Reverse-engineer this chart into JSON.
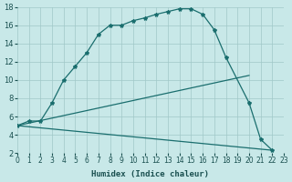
{
  "bg_color": "#c8e8e8",
  "grid_color": "#a0c8c8",
  "line_color": "#1a6e6e",
  "xlabel": "Humidex (Indice chaleur)",
  "xlim": [
    0,
    23
  ],
  "ylim": [
    2,
    18
  ],
  "xticks": [
    0,
    1,
    2,
    3,
    4,
    5,
    6,
    7,
    8,
    9,
    10,
    11,
    12,
    13,
    14,
    15,
    16,
    17,
    18,
    19,
    20,
    21,
    22,
    23
  ],
  "yticks": [
    2,
    4,
    6,
    8,
    10,
    12,
    14,
    16,
    18
  ],
  "curve_x": [
    0,
    1,
    2,
    3,
    4,
    5,
    6,
    7,
    8,
    9,
    10,
    11,
    12,
    13,
    14,
    15,
    16,
    17,
    18,
    20,
    21,
    22
  ],
  "curve_y": [
    5,
    5.5,
    5.5,
    7.5,
    10.0,
    11.5,
    13.0,
    15.0,
    16.0,
    16.0,
    16.5,
    16.8,
    17.2,
    17.5,
    17.8,
    17.8,
    17.2,
    15.5,
    12.5,
    7.5,
    3.5,
    2.3
  ],
  "rise_line_x": [
    0,
    20
  ],
  "rise_line_y": [
    5.0,
    10.5
  ],
  "fall_line_x": [
    0,
    22
  ],
  "fall_line_y": [
    5.0,
    2.3
  ],
  "label_fontsize": 6.5,
  "tick_fontsize": 5.5
}
